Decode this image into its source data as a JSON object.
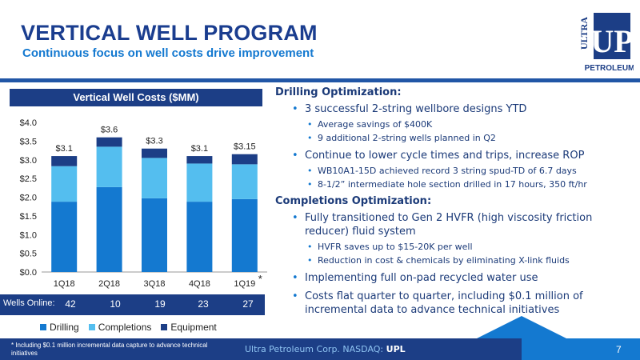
{
  "header": {
    "title": "VERTICAL WELL PROGRAM",
    "subtitle": "Continuous focus on well costs drive improvement"
  },
  "logo": {
    "top_text": "ULTRA",
    "main_text": "UP",
    "bottom_text": "PETROLEUM",
    "icon": "company-logo"
  },
  "chart_title": "Vertical Well Costs ($MM)",
  "chart_data": {
    "type": "bar",
    "stacked": true,
    "categories": [
      "1Q18",
      "2Q18",
      "3Q18",
      "4Q18",
      "1Q19"
    ],
    "category_marks": [
      "",
      "",
      "",
      "",
      "*"
    ],
    "series": [
      {
        "name": "Drilling",
        "values": [
          1.88,
          2.27,
          1.97,
          1.88,
          1.95
        ],
        "color": "#1479d0"
      },
      {
        "name": "Completions",
        "values": [
          0.95,
          1.08,
          1.08,
          1.02,
          0.93
        ],
        "color": "#54beef"
      },
      {
        "name": "Equipment",
        "values": [
          0.27,
          0.25,
          0.25,
          0.2,
          0.27
        ],
        "color": "#1c3e86"
      }
    ],
    "totals": [
      "$3.1",
      "$3.6",
      "$3.3",
      "$3.1",
      "$3.15"
    ],
    "ylim": [
      0,
      4
    ],
    "yticks": [
      "$0.0",
      "$0.5",
      "$1.0",
      "$1.5",
      "$2.0",
      "$2.5",
      "$3.0",
      "$3.5",
      "$4.0"
    ],
    "grid": false,
    "legend_position": "bottom"
  },
  "wells_online": {
    "label": "Wells Online:",
    "values": [
      "42",
      "10",
      "19",
      "23",
      "27"
    ]
  },
  "legend": [
    {
      "label": "Drilling",
      "color": "#1479d0"
    },
    {
      "label": "Completions",
      "color": "#54beef"
    },
    {
      "label": "Equipment",
      "color": "#1c3e86"
    }
  ],
  "drilling": {
    "heading": "Drilling Optimization:",
    "b1": "3 successful 2-string wellbore designs YTD",
    "b1a": "Average savings of $400K",
    "b1b": "9 additional 2-string wells planned in Q2",
    "b2": "Continue to lower cycle times and trips, increase ROP",
    "b2a": "WB10A1-15D achieved record 3 string spud-TD of 6.7 days",
    "b2b": "8-1/2” intermediate hole section drilled in 17 hours, 350 ft/hr"
  },
  "completions": {
    "heading": "Completions Optimization:",
    "b1": "Fully transitioned to Gen 2 HVFR (high viscosity friction reducer) fluid system",
    "b1a": "HVFR saves up to $15-20K per well",
    "b1b": "Reduction in cost & chemicals by eliminating X-link fluids",
    "b2": "Implementing full on-pad recycled water use",
    "b3": "Costs flat quarter to quarter, including $0.1 million of incremental data to advance technical initiatives"
  },
  "footer": {
    "footnote": "* Including $0.1 million incremental data capture to advance technical initiatives",
    "company": "Ultra Petroleum Corp. NASDAQ: ",
    "ticker": "UPL",
    "page": "7"
  }
}
